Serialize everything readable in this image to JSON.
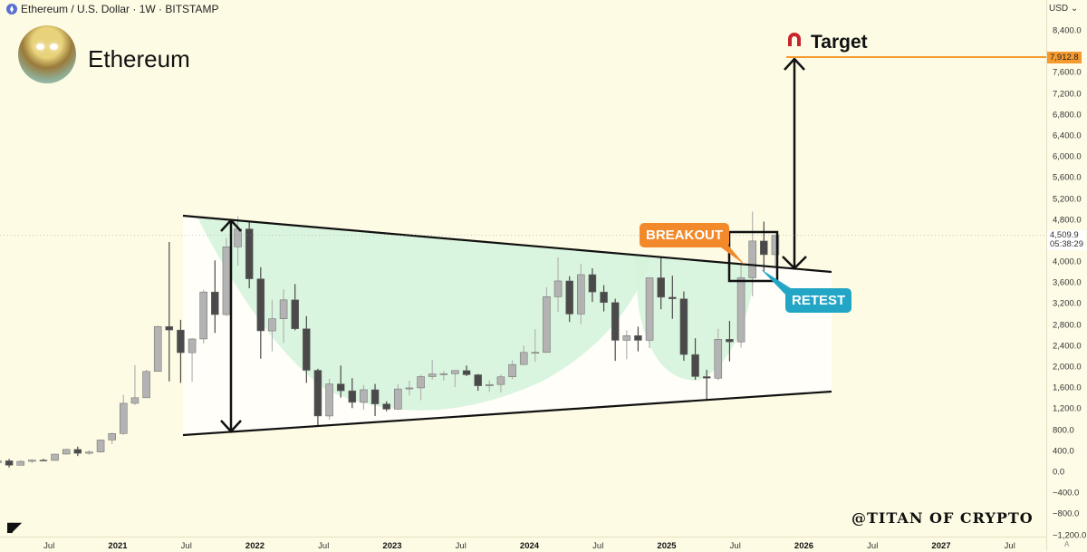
{
  "header": {
    "symbol": "Ethereum / U.S. Dollar · 1W · BITSTAMP",
    "title": "Ethereum"
  },
  "annotations": {
    "target": "Target",
    "breakout": "BREAKOUT",
    "retest": "RETEST",
    "watermark": "@TITAN OF CRYPTO",
    "logo": "TV"
  },
  "price_scale": {
    "currency": "USD",
    "target_price": "7,912.8",
    "current_price": "4,509.9",
    "countdown": "05:38:29",
    "auto": "A"
  },
  "colors": {
    "background": "#fefbe4",
    "pattern_fill": "#d3f3da",
    "target": "#f59a2f",
    "breakout": "#f28a2c",
    "retest": "#23a6c6",
    "candle_up": "#b3b3b3",
    "candle_down": "#4a4a4a"
  },
  "chart_data": {
    "type": "candlestick",
    "title": "Ethereum / U.S. Dollar · 1W · BITSTAMP",
    "ylim": [
      -1200,
      8600
    ],
    "yticks": [
      "8,400.0",
      "7,600.0",
      "7,200.0",
      "6,800.0",
      "6,400.0",
      "6,000.0",
      "5,600.0",
      "5,200.0",
      "4,800.0",
      "4,000.0",
      "3,600.0",
      "3,200.0",
      "2,800.0",
      "2,400.0",
      "2,000.0",
      "1,600.0",
      "1,200.0",
      "800.0",
      "400.0",
      "0.0",
      "−400.0",
      "−800.0",
      "−1,200.0"
    ],
    "ytick_values": [
      8400,
      7600,
      7200,
      6800,
      6400,
      6000,
      5600,
      5200,
      4800,
      4000,
      3600,
      3200,
      2800,
      2400,
      2000,
      1600,
      1200,
      800,
      400,
      0,
      -400,
      -800,
      -1200
    ],
    "xticks": [
      "Jul",
      "2021",
      "Jul",
      "2022",
      "Jul",
      "2023",
      "Jul",
      "2024",
      "Jul",
      "2025",
      "Jul",
      "2026",
      "Jul",
      "2027",
      "Jul"
    ],
    "xtick_dates": [
      2020.5,
      2021,
      2021.5,
      2022,
      2022.5,
      2023,
      2023.5,
      2024,
      2024.5,
      2025,
      2025.5,
      2026,
      2026.5,
      2027,
      2027.5
    ],
    "target_price": 7912.8,
    "current_price": 4509.9,
    "ohlc": [
      [
        "2020-02",
        180,
        288,
        180,
        218
      ],
      [
        "2020-03",
        218,
        253,
        90,
        133
      ],
      [
        "2020-04",
        133,
        227,
        131,
        207
      ],
      [
        "2020-05",
        207,
        246,
        176,
        231
      ],
      [
        "2020-06",
        231,
        254,
        216,
        225
      ],
      [
        "2020-07",
        225,
        347,
        222,
        345
      ],
      [
        "2020-08",
        345,
        445,
        340,
        434
      ],
      [
        "2020-09",
        434,
        488,
        308,
        360
      ],
      [
        "2020-10",
        360,
        420,
        335,
        386
      ],
      [
        "2020-11",
        386,
        622,
        374,
        614
      ],
      [
        "2020-12",
        614,
        755,
        534,
        737
      ],
      [
        "2021-01",
        737,
        1470,
        715,
        1312
      ],
      [
        "2021-02",
        1312,
        2040,
        1280,
        1417
      ],
      [
        "2021-03",
        1417,
        1950,
        1440,
        1918
      ],
      [
        "2021-04",
        1918,
        2790,
        1930,
        2773
      ],
      [
        "2021-05",
        2773,
        4380,
        1730,
        2706
      ],
      [
        "2021-06",
        2706,
        2900,
        1700,
        2275
      ],
      [
        "2021-07",
        2275,
        2550,
        1720,
        2536
      ],
      [
        "2021-08",
        2536,
        3470,
        2450,
        3430
      ],
      [
        "2021-09",
        3430,
        4030,
        2650,
        3000
      ],
      [
        "2021-10",
        3000,
        4460,
        2970,
        4290
      ],
      [
        "2021-11",
        4290,
        4870,
        3930,
        4630
      ],
      [
        "2021-12",
        4630,
        4780,
        3500,
        3680
      ],
      [
        "2022-01",
        3680,
        3900,
        2160,
        2690
      ],
      [
        "2022-02",
        2690,
        3280,
        2300,
        2920
      ],
      [
        "2022-03",
        2920,
        3480,
        2460,
        3280
      ],
      [
        "2022-04",
        3280,
        3580,
        2700,
        2730
      ],
      [
        "2022-05",
        2730,
        2970,
        1700,
        1940
      ],
      [
        "2022-06",
        1940,
        1970,
        880,
        1070
      ],
      [
        "2022-07",
        1070,
        1780,
        1000,
        1680
      ],
      [
        "2022-08",
        1680,
        2030,
        1420,
        1550
      ],
      [
        "2022-09",
        1550,
        1790,
        1220,
        1330
      ],
      [
        "2022-10",
        1330,
        1660,
        1190,
        1570
      ],
      [
        "2022-11",
        1570,
        1680,
        1070,
        1300
      ],
      [
        "2022-12",
        1300,
        1350,
        1160,
        1200
      ],
      [
        "2023-01",
        1200,
        1680,
        1190,
        1585
      ],
      [
        "2023-02",
        1585,
        1740,
        1460,
        1605
      ],
      [
        "2023-03",
        1605,
        1860,
        1370,
        1820
      ],
      [
        "2023-04",
        1820,
        2140,
        1760,
        1870
      ],
      [
        "2023-05",
        1870,
        1930,
        1740,
        1875
      ],
      [
        "2023-06",
        1875,
        1930,
        1620,
        1935
      ],
      [
        "2023-07",
        1935,
        2030,
        1830,
        1855
      ],
      [
        "2023-08",
        1855,
        1870,
        1550,
        1645
      ],
      [
        "2023-09",
        1645,
        1750,
        1530,
        1670
      ],
      [
        "2023-10",
        1670,
        1860,
        1520,
        1815
      ],
      [
        "2023-11",
        1815,
        2130,
        1770,
        2050
      ],
      [
        "2023-12",
        2050,
        2410,
        2040,
        2280
      ],
      [
        "2024-01",
        2280,
        2720,
        2100,
        2280
      ],
      [
        "2024-02",
        2280,
        3520,
        2270,
        3340
      ],
      [
        "2024-03",
        3340,
        4090,
        3050,
        3640
      ],
      [
        "2024-04",
        3640,
        3730,
        2860,
        3010
      ],
      [
        "2024-05",
        3010,
        3970,
        2820,
        3760
      ],
      [
        "2024-06",
        3760,
        3880,
        3240,
        3430
      ],
      [
        "2024-07",
        3430,
        3560,
        3060,
        3230
      ],
      [
        "2024-08",
        3230,
        3300,
        2120,
        2510
      ],
      [
        "2024-09",
        2510,
        2700,
        2150,
        2600
      ],
      [
        "2024-10",
        2600,
        2770,
        2300,
        2510
      ],
      [
        "2024-11",
        2510,
        3690,
        2360,
        3700
      ],
      [
        "2024-12",
        3700,
        4110,
        3100,
        3330
      ],
      [
        "2025-01",
        3330,
        3740,
        2920,
        3300
      ],
      [
        "2025-02",
        3300,
        3440,
        2120,
        2240
      ],
      [
        "2025-03",
        2240,
        2550,
        1760,
        1820
      ],
      [
        "2025-04",
        1820,
        1950,
        1380,
        1790
      ],
      [
        "2025-05",
        1790,
        2730,
        1750,
        2530
      ],
      [
        "2025-06",
        2530,
        2880,
        2110,
        2480
      ],
      [
        "2025-07",
        2480,
        3940,
        2370,
        3700
      ],
      [
        "2025-08",
        3700,
        4960,
        3350,
        4400
      ],
      [
        "2025-09",
        4400,
        4770,
        3820,
        4140
      ],
      [
        "2025-10",
        4140,
        4500,
        3900,
        4510
      ]
    ]
  }
}
